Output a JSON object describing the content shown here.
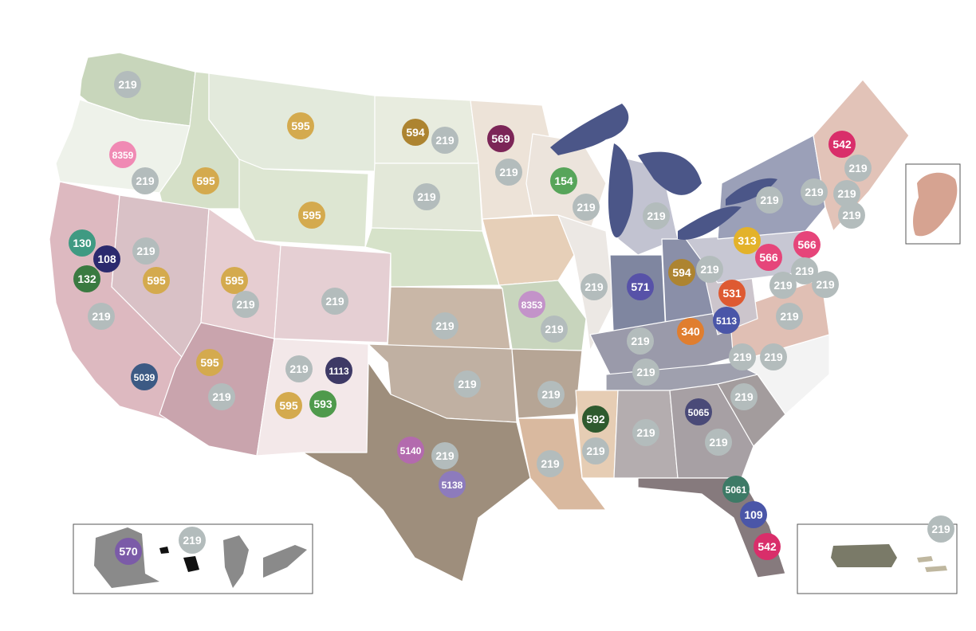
{
  "colors": {
    "gray_marker": "#b3bcbc",
    "gold_marker": "#d4aa4e",
    "state_border": "#ffffff",
    "inset_border": "#555555",
    "great_lakes": "#4b5688"
  },
  "insets": {
    "europe": {
      "icon": "europe-silhouette-icon"
    },
    "pacific": {
      "icon": "alaska-hawaii-korea-japan-icon"
    },
    "caribbean": {
      "icon": "puerto-rico-icon"
    }
  },
  "markers": [
    {
      "label": "219",
      "color": "#b3bcbc"
    },
    {
      "label": "8359",
      "color": "#f08ab4"
    },
    {
      "label": "219",
      "color": "#b3bcbc"
    },
    {
      "label": "595",
      "color": "#d4aa4e"
    },
    {
      "label": "595",
      "color": "#d4aa4e"
    },
    {
      "label": "595",
      "color": "#d4aa4e"
    },
    {
      "label": "130",
      "color": "#3f9a82"
    },
    {
      "label": "108",
      "color": "#2b2a6e"
    },
    {
      "label": "132",
      "color": "#3a7a41"
    },
    {
      "label": "219",
      "color": "#b3bcbc"
    },
    {
      "label": "595",
      "color": "#d4aa4e"
    },
    {
      "label": "595",
      "color": "#d4aa4e"
    },
    {
      "label": "219",
      "color": "#b3bcbc"
    },
    {
      "label": "219",
      "color": "#b3bcbc"
    },
    {
      "label": "219",
      "color": "#b3bcbc"
    },
    {
      "label": "5039",
      "color": "#3c5a84"
    },
    {
      "label": "595",
      "color": "#d4aa4e"
    },
    {
      "label": "219",
      "color": "#b3bcbc"
    },
    {
      "label": "219",
      "color": "#b3bcbc"
    },
    {
      "label": "1113",
      "color": "#3e3a66"
    },
    {
      "label": "595",
      "color": "#d4aa4e"
    },
    {
      "label": "593",
      "color": "#4f9a4c"
    },
    {
      "label": "594",
      "color": "#ad8431"
    },
    {
      "label": "219",
      "color": "#b3bcbc"
    },
    {
      "label": "219",
      "color": "#b3bcbc"
    },
    {
      "label": "569",
      "color": "#7c2557"
    },
    {
      "label": "219",
      "color": "#b3bcbc"
    },
    {
      "label": "154",
      "color": "#57a55a"
    },
    {
      "label": "219",
      "color": "#b3bcbc"
    },
    {
      "label": "8353",
      "color": "#c393c9"
    },
    {
      "label": "219",
      "color": "#b3bcbc"
    },
    {
      "label": "219",
      "color": "#b3bcbc"
    },
    {
      "label": "219",
      "color": "#b3bcbc"
    },
    {
      "label": "5140",
      "color": "#b36aae"
    },
    {
      "label": "219",
      "color": "#b3bcbc"
    },
    {
      "label": "5138",
      "color": "#8d7bbc"
    },
    {
      "label": "219",
      "color": "#b3bcbc"
    },
    {
      "label": "219",
      "color": "#b3bcbc"
    },
    {
      "label": "219",
      "color": "#b3bcbc"
    },
    {
      "label": "592",
      "color": "#2e5a2e"
    },
    {
      "label": "219",
      "color": "#b3bcbc"
    },
    {
      "label": "219",
      "color": "#b3bcbc"
    },
    {
      "label": "219",
      "color": "#b3bcbc"
    },
    {
      "label": "219",
      "color": "#b3bcbc"
    },
    {
      "label": "219",
      "color": "#b3bcbc"
    },
    {
      "label": "594",
      "color": "#ad8431"
    },
    {
      "label": "219",
      "color": "#b3bcbc"
    },
    {
      "label": "571",
      "color": "#5752a8"
    },
    {
      "label": "531",
      "color": "#de5a32"
    },
    {
      "label": "340",
      "color": "#e07e2f"
    },
    {
      "label": "5113",
      "color": "#4a56a8"
    },
    {
      "label": "219",
      "color": "#b3bcbc"
    },
    {
      "label": "219",
      "color": "#b3bcbc"
    },
    {
      "label": "219",
      "color": "#b3bcbc"
    },
    {
      "label": "5065",
      "color": "#4a4a78"
    },
    {
      "label": "219",
      "color": "#b3bcbc"
    },
    {
      "label": "5061",
      "color": "#3d7a66"
    },
    {
      "label": "109",
      "color": "#4a56a8"
    },
    {
      "label": "542",
      "color": "#d92e6a"
    },
    {
      "label": "542",
      "color": "#d92e6a"
    },
    {
      "label": "219",
      "color": "#b3bcbc"
    },
    {
      "label": "219",
      "color": "#b3bcbc"
    },
    {
      "label": "219",
      "color": "#b3bcbc"
    },
    {
      "label": "219",
      "color": "#b3bcbc"
    },
    {
      "label": "219",
      "color": "#b3bcbc"
    },
    {
      "label": "313",
      "color": "#e3b22a"
    },
    {
      "label": "566",
      "color": "#e6457a"
    },
    {
      "label": "566",
      "color": "#e6457a"
    },
    {
      "label": "219",
      "color": "#b3bcbc"
    },
    {
      "label": "219",
      "color": "#b3bcbc"
    },
    {
      "label": "219",
      "color": "#b3bcbc"
    },
    {
      "label": "219",
      "color": "#b3bcbc"
    },
    {
      "label": "570",
      "color": "#7b5ba8"
    },
    {
      "label": "219",
      "color": "#b3bcbc"
    },
    {
      "label": "219",
      "color": "#b3bcbc"
    }
  ]
}
